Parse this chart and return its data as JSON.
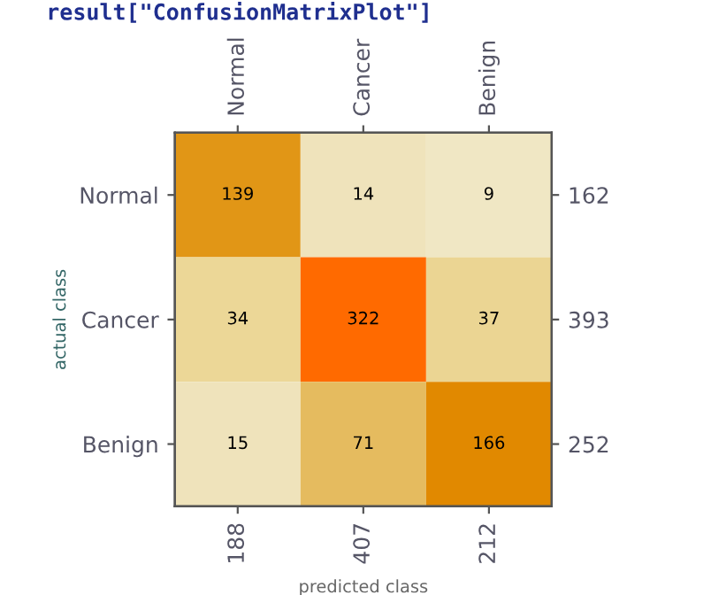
{
  "chart_data": {
    "type": "heatmap",
    "title": "result[\"ConfusionMatrixPlot\"]",
    "xlabel": "predicted class",
    "ylabel": "actual class",
    "categories": [
      "Normal",
      "Cancer",
      "Benign"
    ],
    "y_categories": [
      "Normal",
      "Cancer",
      "Benign"
    ],
    "y2_categories": [
      "162",
      "393",
      "252"
    ],
    "totals": [
      "188",
      "407",
      "212"
    ],
    "cells": [
      [
        139,
        14,
        9
      ],
      [
        34,
        322,
        37
      ],
      [
        15,
        71,
        166
      ]
    ],
    "colors": [
      "#f2ecd4",
      "#ecd89a",
      "#e3b450",
      "#e08a00",
      "#ff6a00"
    ],
    "data_labels": true
  }
}
